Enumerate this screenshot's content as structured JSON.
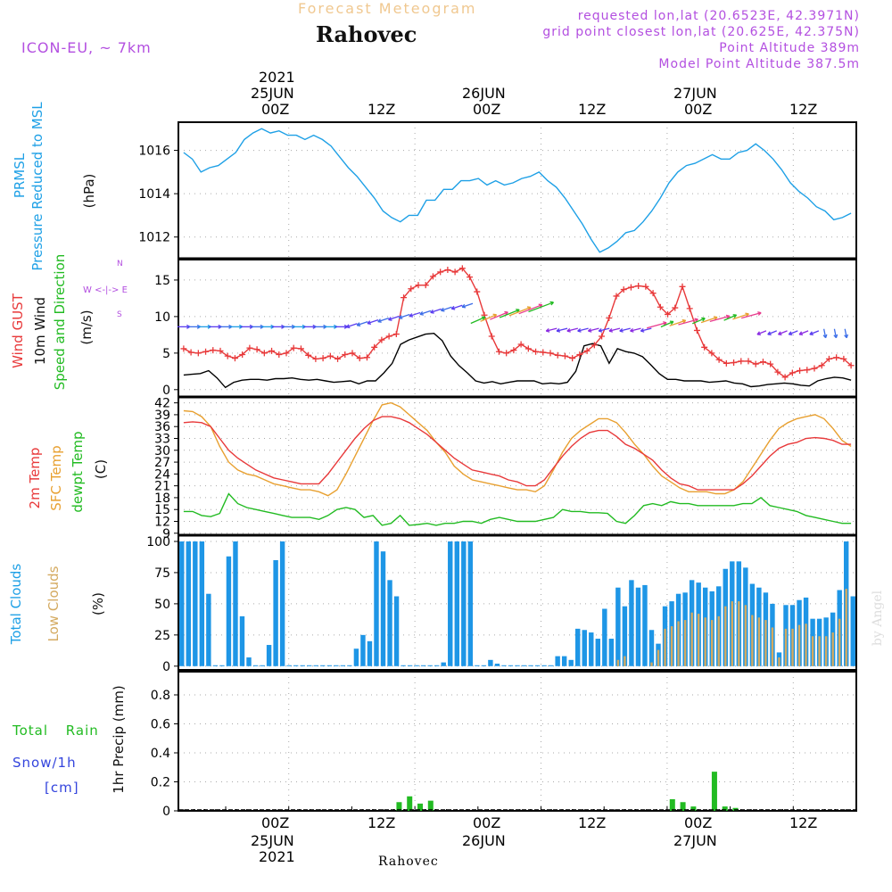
{
  "header": {
    "top_title": "Forecast Meteogram",
    "location": "Rahovec",
    "model": "ICON-EU, ~ 7km",
    "requested": "requested lon,lat (20.6523E, 42.3971N)",
    "grid_point": "grid point closest lon,lat (20.625E, 42.375N)",
    "point_alt": "Point Altitude 389m",
    "model_alt": "Model Point Altitude 387.5m"
  },
  "time_axis": {
    "top_year": "2021",
    "day_labels": [
      "25JUN",
      "26JUN",
      "27JUN"
    ],
    "hour_labels": [
      "00Z",
      "12Z",
      "00Z",
      "12Z",
      "00Z",
      "12Z"
    ],
    "footer_location": "Rahovec",
    "watermark": "by Angel"
  },
  "labels": {
    "p1": {
      "a": "PRMSL",
      "b": "Pressure Reduced to MSL",
      "unit": "(hPa)"
    },
    "p2": {
      "a": "Wind GUST",
      "b": "10m Wind",
      "c": "Speed and Direction",
      "unit": "(m/s)",
      "compass_n": "N",
      "compass_s": "S",
      "compass_we": "W <-|-> E"
    },
    "p3": {
      "a": "2m Temp",
      "b": "SFC Temp",
      "c": "dewpt Temp",
      "unit": "(C)"
    },
    "p4": {
      "a": "Total Clouds",
      "b": "Low Clouds",
      "unit": "(%)"
    },
    "p5": {
      "a": "Total Rain",
      "b": "Snow/1h",
      "c": "[cm]",
      "unit": "1hr Precip (mm)"
    }
  },
  "colors": {
    "pressure": "#1ea0e6",
    "gust": "#e8393a",
    "wind": "#000000",
    "temp2m": "#e8393a",
    "sfc": "#e8a030",
    "dew": "#22bb22",
    "total_clouds": "#1e96e6",
    "low_clouds": "#d4aa60",
    "rain": "#22bb22",
    "snow": "#3344dd"
  },
  "chart_data": [
    {
      "type": "line",
      "title": "Pressure Reduced to MSL",
      "ylabel": "(hPa)",
      "ylim": [
        1011,
        1017.3
      ],
      "yticks": [
        1012,
        1014,
        1016
      ],
      "x_hours_from_start": [
        0,
        72
      ],
      "series": [
        {
          "name": "PRMSL",
          "values": [
            1015.9,
            1015.6,
            1015.0,
            1015.2,
            1015.3,
            1015.6,
            1015.9,
            1016.5,
            1016.8,
            1017.0,
            1016.8,
            1016.9,
            1016.7,
            1016.7,
            1016.5,
            1016.7,
            1016.5,
            1016.2,
            1015.7,
            1015.2,
            1014.8,
            1014.3,
            1013.8,
            1013.2,
            1012.9,
            1012.7,
            1013.0,
            1013.0,
            1013.7,
            1013.7,
            1014.2,
            1014.2,
            1014.6,
            1014.6,
            1014.7,
            1014.4,
            1014.6,
            1014.4,
            1014.5,
            1014.7,
            1014.8,
            1015.0,
            1014.6,
            1014.3,
            1013.8,
            1013.2,
            1012.6,
            1011.9,
            1011.3,
            1011.5,
            1011.8,
            1012.2,
            1012.3,
            1012.7,
            1013.2,
            1013.8,
            1014.5,
            1015.0,
            1015.3,
            1015.4,
            1015.6,
            1015.8,
            1015.6,
            1015.6,
            1015.9,
            1016.0,
            1016.3,
            1016.0,
            1015.6,
            1015.1,
            1014.5,
            1014.1,
            1013.8,
            1013.4,
            1013.2,
            1012.8,
            1012.9,
            1013.1
          ]
        }
      ]
    },
    {
      "type": "line",
      "title": "10m Wind Speed and Gust",
      "ylabel": "(m/s)",
      "ylim": [
        -1,
        17.8
      ],
      "yticks": [
        0,
        5,
        10,
        15
      ],
      "series": [
        {
          "name": "Wind GUST",
          "values": [
            5.6,
            5.1,
            5.0,
            5.2,
            5.4,
            5.3,
            4.6,
            4.3,
            4.8,
            5.7,
            5.5,
            5.0,
            5.3,
            4.8,
            5.0,
            5.7,
            5.6,
            4.7,
            4.2,
            4.3,
            4.6,
            4.2,
            4.8,
            5.0,
            4.3,
            4.4,
            5.8,
            6.8,
            7.3,
            7.6,
            12.6,
            13.8,
            14.3,
            14.3,
            15.5,
            16.1,
            16.4,
            16.1,
            16.6,
            15.4,
            13.4,
            10.2,
            7.3,
            5.2,
            5.0,
            5.4,
            6.2,
            5.6,
            5.2,
            5.1,
            5.0,
            4.7,
            4.6,
            4.3,
            4.8,
            5.3,
            6.1,
            7.3,
            9.8,
            12.8,
            13.7,
            14.0,
            14.2,
            14.1,
            13.2,
            11.3,
            10.3,
            11.2,
            14.1,
            11.1,
            8.1,
            5.8,
            5.0,
            4.1,
            3.6,
            3.7,
            3.9,
            3.9,
            3.5,
            3.8,
            3.5,
            2.4,
            1.7,
            2.3,
            2.6,
            2.7,
            2.9,
            3.3,
            4.2,
            4.4,
            4.2,
            3.3
          ]
        },
        {
          "name": "10m Wind",
          "values": [
            2.0,
            2.1,
            2.2,
            2.6,
            1.6,
            0.3,
            1.0,
            1.3,
            1.4,
            1.4,
            1.3,
            1.5,
            1.5,
            1.6,
            1.4,
            1.3,
            1.4,
            1.2,
            1.0,
            1.1,
            1.2,
            0.8,
            1.2,
            1.2,
            2.3,
            3.6,
            6.2,
            6.8,
            7.2,
            7.6,
            7.7,
            6.7,
            4.6,
            3.3,
            2.3,
            1.2,
            0.9,
            1.1,
            0.8,
            1.0,
            1.2,
            1.2,
            1.2,
            0.8,
            0.9,
            0.8,
            1.0,
            2.5,
            6.0,
            6.3,
            6.0,
            3.6,
            5.6,
            5.2,
            5.0,
            4.5,
            3.4,
            2.2,
            1.4,
            1.4,
            1.2,
            1.2,
            1.2,
            1.0,
            1.1,
            1.2,
            0.9,
            0.8,
            0.4,
            0.5,
            0.7,
            0.8,
            0.9,
            0.8,
            0.6,
            0.5,
            1.2,
            1.5,
            1.7,
            1.6,
            1.3
          ]
        }
      ]
    },
    {
      "type": "line",
      "title": "Temperature",
      "ylabel": "(C)",
      "ylim": [
        8.5,
        43.5
      ],
      "yticks": [
        9,
        12,
        15,
        18,
        21,
        24,
        27,
        30,
        33,
        36,
        39,
        42
      ],
      "series": [
        {
          "name": "2m Temp",
          "values": [
            37,
            37.2,
            37,
            36,
            33,
            30,
            28,
            26.5,
            25,
            24,
            23,
            22.5,
            22,
            21.5,
            21.5,
            21.5,
            24,
            27,
            30,
            33,
            35.5,
            37.5,
            38.5,
            38.5,
            38,
            37,
            35.5,
            34,
            32,
            30,
            28,
            26.5,
            25,
            24.5,
            24,
            23.5,
            22.5,
            22,
            21,
            21,
            22.5,
            25.5,
            28.5,
            31,
            33,
            34.5,
            35,
            35,
            33.5,
            31.5,
            30.5,
            29,
            27.5,
            25,
            23,
            21.5,
            21,
            20,
            20,
            20,
            20,
            20,
            21.5,
            23.5,
            26,
            28.5,
            30.5,
            31.5,
            32,
            33,
            33.2,
            33,
            32.5,
            31.5,
            31.5
          ]
        },
        {
          "name": "SFC Temp",
          "values": [
            40,
            39.8,
            38.5,
            36,
            31,
            27,
            25,
            24,
            23.5,
            22.5,
            21.5,
            21,
            20.5,
            20,
            20,
            19.5,
            18.5,
            20,
            24,
            28.5,
            33,
            37.5,
            41.5,
            42,
            41,
            39,
            37,
            35,
            32,
            29.5,
            26,
            24,
            22.5,
            22,
            21.5,
            21,
            20.5,
            20,
            20,
            19.5,
            21,
            25,
            29.5,
            33,
            35,
            36.5,
            38,
            38,
            37,
            34.5,
            31.5,
            29,
            26,
            23.5,
            22,
            20.5,
            19.5,
            19.5,
            19.5,
            19,
            19,
            20,
            22,
            25.5,
            29,
            32.5,
            35.5,
            37,
            38,
            38.5,
            39,
            38,
            35.5,
            32.5,
            31
          ]
        },
        {
          "name": "dewpt Temp",
          "values": [
            14.5,
            14.5,
            13.5,
            13.2,
            14,
            19,
            16.5,
            15.5,
            15,
            14.5,
            14,
            13.5,
            13,
            13,
            13,
            12.5,
            13.5,
            15,
            15.5,
            15,
            13,
            13.5,
            11,
            11.5,
            13.5,
            11,
            11.2,
            11.5,
            11,
            11.5,
            11.5,
            12,
            12,
            11.5,
            12.5,
            13,
            12.5,
            12,
            12,
            12,
            12.5,
            13,
            15,
            14.5,
            14.5,
            14.2,
            14.2,
            14,
            12,
            11.5,
            13.5,
            16,
            16.5,
            16,
            17,
            16.5,
            16.5,
            16,
            16,
            16,
            16,
            16,
            16.5,
            16.5,
            18,
            16,
            15.5,
            15,
            14.5,
            13.5,
            13,
            12.5,
            12,
            11.5,
            11.5
          ]
        }
      ]
    },
    {
      "type": "bar",
      "title": "Clouds",
      "ylabel": "(%)",
      "ylim": [
        -3,
        105
      ],
      "yticks": [
        0,
        25,
        50,
        75,
        100
      ],
      "series": [
        {
          "name": "Total Clouds",
          "values": [
            100,
            100,
            100,
            100,
            58,
            0,
            0,
            88,
            100,
            40,
            7,
            0,
            0,
            17,
            85,
            100,
            0,
            0,
            0,
            0,
            0,
            0,
            0,
            0,
            0,
            0,
            14,
            25,
            20,
            100,
            92,
            69,
            56,
            0,
            0,
            0,
            0,
            0,
            0,
            3,
            100,
            100,
            100,
            100,
            0,
            0,
            5,
            2,
            0,
            0,
            0,
            0,
            0,
            0,
            0,
            0,
            8,
            8,
            5,
            30,
            29,
            27,
            22,
            46,
            22,
            63,
            48,
            69,
            63,
            65,
            29,
            18,
            48,
            52,
            58,
            59,
            69,
            67,
            63,
            60,
            64,
            78,
            84,
            84,
            79,
            66,
            63,
            59,
            50,
            11,
            49,
            49,
            53,
            55,
            38,
            38,
            39,
            43,
            61,
            100,
            56
          ]
        },
        {
          "name": "Low Clouds",
          "values": [
            0,
            0,
            0,
            0,
            0,
            0,
            0,
            0,
            0,
            0,
            0,
            0,
            0,
            0,
            0,
            0,
            0,
            0,
            0,
            0,
            0,
            0,
            0,
            0,
            0,
            0,
            0,
            0,
            0,
            0,
            0,
            0,
            0,
            0,
            0,
            0,
            0,
            0,
            0,
            0,
            0,
            0,
            0,
            0,
            0,
            0,
            0,
            0,
            0,
            0,
            0,
            0,
            0,
            0,
            0,
            0,
            0,
            0,
            0,
            0,
            0,
            0,
            0,
            0,
            0,
            5,
            8,
            0,
            0,
            0,
            3,
            2,
            0,
            0,
            0,
            0,
            0,
            0,
            0,
            0,
            0,
            0,
            0,
            0,
            0,
            0,
            0,
            0,
            0,
            0,
            0,
            0,
            0,
            0,
            0,
            0,
            0,
            0,
            0,
            0,
            0,
            0,
            0,
            0,
            0,
            0,
            0,
            0,
            0,
            0
          ]
        }
      ]
    },
    {
      "type": "bar",
      "title": "1hr Precip",
      "ylabel": "1hr Precip (mm)",
      "ylim": [
        0,
        0.96
      ],
      "yticks": [
        0,
        0.2,
        0.4,
        0.6,
        0.8
      ],
      "rain_hours": [
        21,
        22,
        23,
        24,
        25,
        47,
        48,
        49,
        50,
        51,
        52,
        53,
        54
      ],
      "series": [
        {
          "name": "Total Rain",
          "values": [
            0.06,
            0.1,
            0.05,
            0.07,
            0,
            0.08,
            0.06,
            0.03,
            0,
            0.27,
            0.03,
            0.02,
            0
          ]
        }
      ]
    }
  ]
}
